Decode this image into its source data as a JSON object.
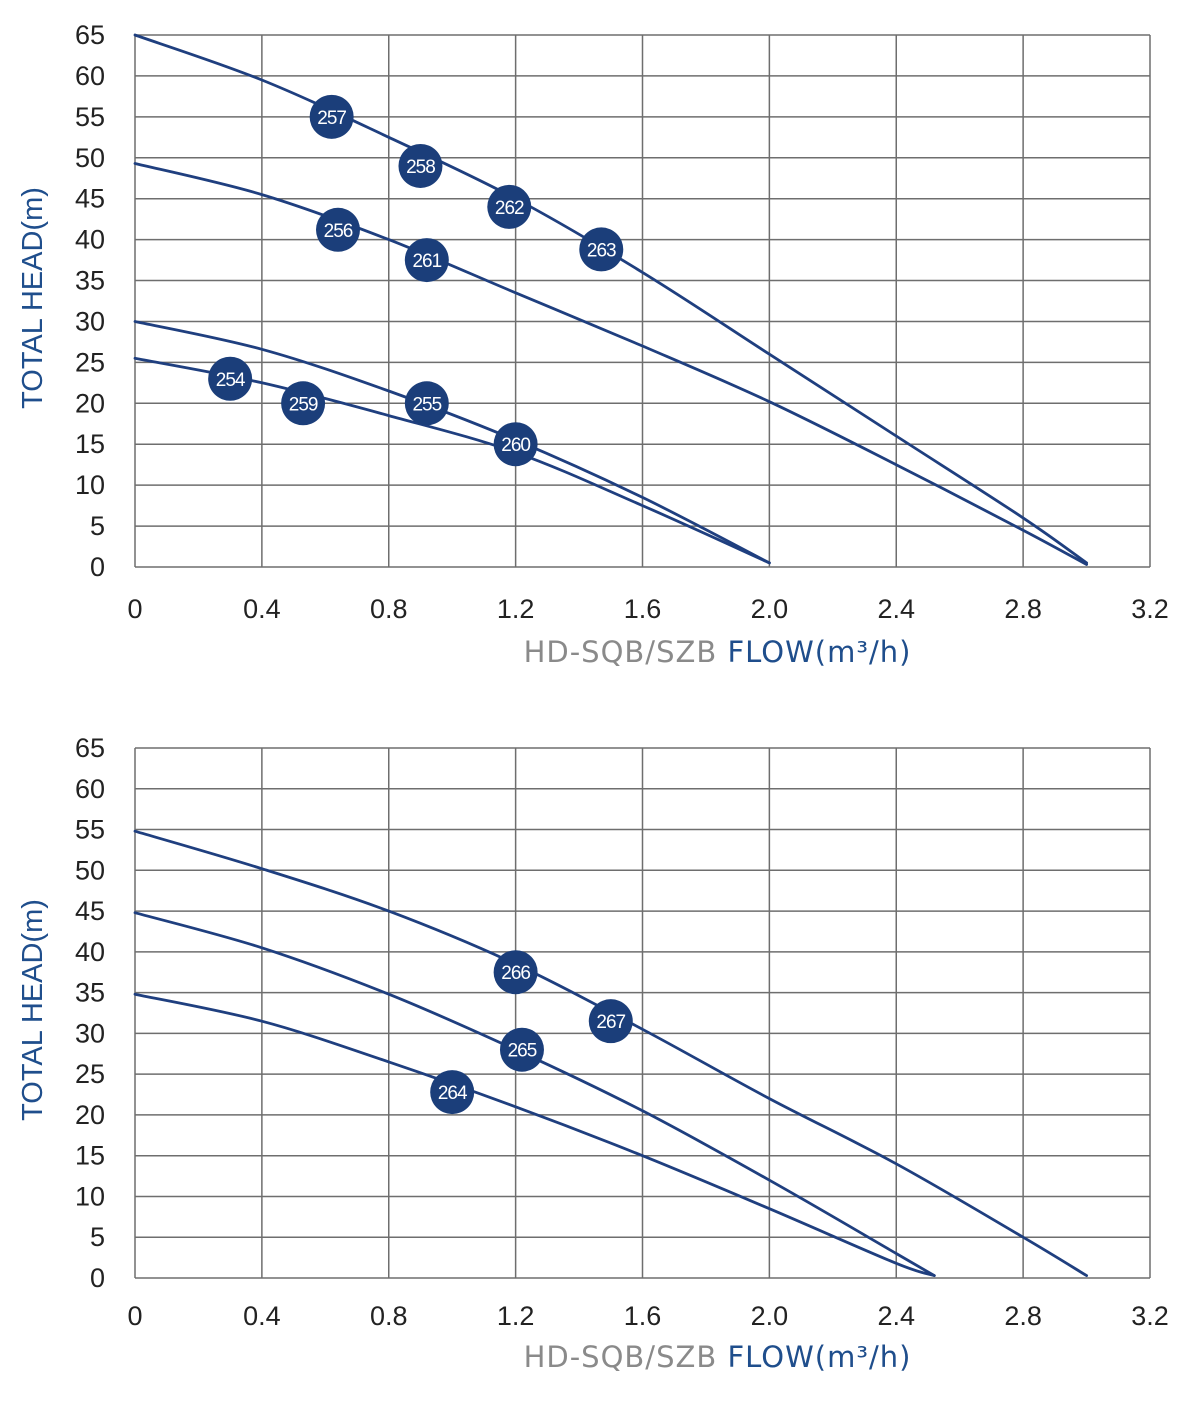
{
  "colors": {
    "curve": "#1f3f7f",
    "badge": "#1b3e7a",
    "grid": "#6e6e6e",
    "axis_label": "#1f4e8c",
    "prefix": "#8a8a8a"
  },
  "chart_data": [
    {
      "type": "line",
      "xlabel_prefix": "HD-SQB/SZB",
      "xlabel": "FLOW(m³/h)",
      "ylabel": "TOTAL HEAD(m)",
      "xlim": [
        0,
        3.2
      ],
      "ylim": [
        0,
        65
      ],
      "xticks": [
        "0",
        "0.4",
        "0.8",
        "1.2",
        "1.6",
        "2.0",
        "2.4",
        "2.8",
        "3.2"
      ],
      "yticks": [
        "0",
        "5",
        "10",
        "15",
        "20",
        "25",
        "30",
        "35",
        "40",
        "45",
        "50",
        "55",
        "60",
        "65"
      ],
      "grid": true,
      "series": [
        {
          "x": [
            0,
            0.4,
            0.8,
            1.2,
            1.6,
            2.0,
            2.4,
            2.8,
            3.0
          ],
          "y": [
            65,
            59.5,
            52.5,
            45,
            36,
            26,
            16,
            6,
            0.5
          ],
          "markers": [
            {
              "label": "257",
              "x": 0.62,
              "y": 55
            },
            {
              "label": "258",
              "x": 0.9,
              "y": 49
            },
            {
              "label": "262",
              "x": 1.18,
              "y": 44
            },
            {
              "label": "263",
              "x": 1.47,
              "y": 38.8
            }
          ]
        },
        {
          "x": [
            0,
            0.4,
            0.8,
            1.2,
            1.6,
            2.0,
            2.4,
            2.8,
            3.0
          ],
          "y": [
            49.3,
            45.5,
            40,
            33.5,
            27,
            20.2,
            12.5,
            4.5,
            0.3
          ],
          "markers": [
            {
              "label": "256",
              "x": 0.64,
              "y": 41.2
            },
            {
              "label": "261",
              "x": 0.92,
              "y": 37.5
            }
          ]
        },
        {
          "x": [
            0,
            0.4,
            0.8,
            1.2,
            1.6,
            2.0
          ],
          "y": [
            30,
            26.6,
            21.5,
            15.5,
            8.5,
            0.5
          ],
          "markers": [
            {
              "label": "255",
              "x": 0.92,
              "y": 20
            },
            {
              "label": "260",
              "x": 1.2,
              "y": 15
            }
          ]
        },
        {
          "x": [
            0,
            0.4,
            0.8,
            1.2,
            1.6,
            2.0
          ],
          "y": [
            25.5,
            22.5,
            18.5,
            14,
            7.5,
            0.5
          ],
          "markers": [
            {
              "label": "254",
              "x": 0.3,
              "y": 23
            },
            {
              "label": "259",
              "x": 0.53,
              "y": 20
            }
          ]
        }
      ]
    },
    {
      "type": "line",
      "xlabel_prefix": "HD-SQB/SZB",
      "xlabel": "FLOW(m³/h)",
      "ylabel": "TOTAL HEAD(m)",
      "xlim": [
        0,
        3.2
      ],
      "ylim": [
        0,
        65
      ],
      "xticks": [
        "0",
        "0.4",
        "0.8",
        "1.2",
        "1.6",
        "2.0",
        "2.4",
        "2.8",
        "3.2"
      ],
      "yticks": [
        "0",
        "5",
        "10",
        "15",
        "20",
        "25",
        "30",
        "35",
        "40",
        "45",
        "50",
        "55",
        "60",
        "65"
      ],
      "grid": true,
      "series": [
        {
          "x": [
            0,
            0.4,
            0.8,
            1.2,
            1.6,
            2.0,
            2.4,
            2.8,
            3.0
          ],
          "y": [
            54.8,
            50.2,
            45,
            38.5,
            30.5,
            22,
            14,
            5,
            0.3
          ],
          "markers": [
            {
              "label": "266",
              "x": 1.2,
              "y": 37.5
            },
            {
              "label": "267",
              "x": 1.5,
              "y": 31.5
            }
          ]
        },
        {
          "x": [
            0,
            0.4,
            0.8,
            1.2,
            1.6,
            2.0,
            2.4,
            2.52
          ],
          "y": [
            44.8,
            40.5,
            34.8,
            28,
            20.5,
            12,
            3,
            0.3
          ],
          "markers": [
            {
              "label": "265",
              "x": 1.22,
              "y": 28
            }
          ]
        },
        {
          "x": [
            0,
            0.4,
            0.8,
            1.2,
            1.6,
            2.0,
            2.4,
            2.52
          ],
          "y": [
            34.8,
            31.5,
            26.5,
            21,
            15,
            8.5,
            1.8,
            0.3
          ],
          "markers": [
            {
              "label": "264",
              "x": 1.0,
              "y": 22.8
            }
          ]
        }
      ]
    }
  ]
}
